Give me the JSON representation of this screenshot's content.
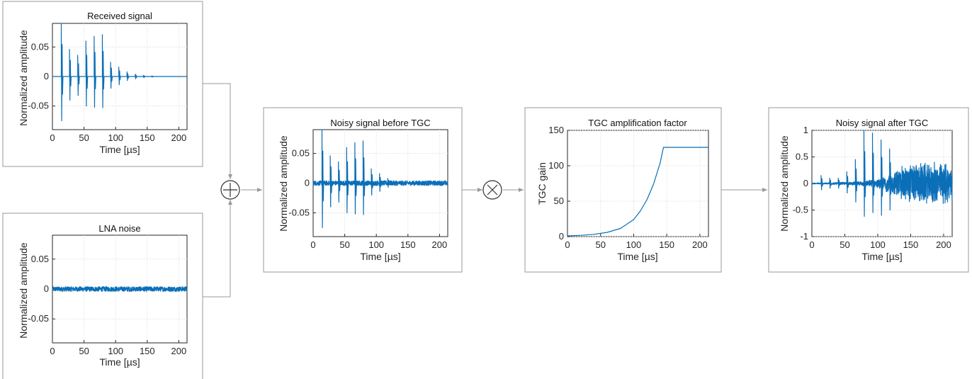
{
  "panels": [
    {
      "id": "received",
      "title": "Received signal",
      "xlabel": "Time [µs]",
      "ylabel": "Normalized amplitude",
      "xlim": [
        0,
        213
      ],
      "ylim": [
        -0.09,
        0.09
      ],
      "xticks": [
        0,
        50,
        100,
        150,
        200
      ],
      "yticks": [
        -0.05,
        0,
        0.05
      ],
      "xtick_labels": [
        "0",
        "50",
        "100",
        "150",
        "200"
      ],
      "ytick_labels": [
        "-0.05",
        "0",
        "0.05"
      ]
    },
    {
      "id": "lna_noise",
      "title": "LNA noise",
      "xlabel": "Time [µs]",
      "ylabel": "Normalized amplitude",
      "xlim": [
        0,
        213
      ],
      "ylim": [
        -0.09,
        0.09
      ],
      "xticks": [
        0,
        50,
        100,
        150,
        200
      ],
      "yticks": [
        -0.05,
        0,
        0.05
      ],
      "xtick_labels": [
        "0",
        "50",
        "100",
        "150",
        "200"
      ],
      "ytick_labels": [
        "-0.05",
        "0",
        "0.05"
      ]
    },
    {
      "id": "noisy_before",
      "title": "Noisy signal before TGC",
      "xlabel": "Time [µs]",
      "ylabel": "Normalized amplitude",
      "xlim": [
        0,
        213
      ],
      "ylim": [
        -0.09,
        0.09
      ],
      "xticks": [
        0,
        50,
        100,
        150,
        200
      ],
      "yticks": [
        -0.05,
        0,
        0.05
      ],
      "xtick_labels": [
        "0",
        "50",
        "100",
        "150",
        "200"
      ],
      "ytick_labels": [
        "-0.05",
        "0",
        "0.05"
      ]
    },
    {
      "id": "tgc_gain",
      "title": "TGC amplification factor",
      "xlabel": "Time [µs]",
      "ylabel": "TGC gain",
      "xlim": [
        0,
        213
      ],
      "ylim": [
        0,
        150
      ],
      "xticks": [
        0,
        50,
        100,
        150,
        200
      ],
      "yticks": [
        0,
        50,
        100,
        150
      ],
      "xtick_labels": [
        "0",
        "50",
        "100",
        "150",
        "200"
      ],
      "ytick_labels": [
        "0",
        "50",
        "100",
        "150"
      ]
    },
    {
      "id": "noisy_after",
      "title": "Noisy signal after TGC",
      "xlabel": "Time [µs]",
      "ylabel": "Normalized amplitude",
      "xlim": [
        0,
        213
      ],
      "ylim": [
        -1,
        1
      ],
      "xticks": [
        0,
        50,
        100,
        150,
        200
      ],
      "yticks": [
        -1,
        -0.5,
        0,
        0.5,
        1
      ],
      "xtick_labels": [
        "0",
        "50",
        "100",
        "150",
        "200"
      ],
      "ytick_labels": [
        "-1",
        "-0.5",
        "0",
        "0.5",
        "1"
      ]
    }
  ],
  "operators": {
    "sum": "sum-operator",
    "product": "product-operator"
  },
  "colors": {
    "trace": "#0b6fb8",
    "connector": "#9a9a9a"
  },
  "chart_data": [
    {
      "type": "line",
      "panel": "received",
      "title": "Received signal",
      "xlabel": "Time [µs]",
      "ylabel": "Normalized amplitude",
      "xlim": [
        0,
        213
      ],
      "ylim": [
        -0.09,
        0.09
      ],
      "grid": true,
      "echoes": [
        {
          "t": 14,
          "pos": 0.09,
          "neg": -0.075
        },
        {
          "t": 27,
          "pos": 0.046,
          "neg": -0.04
        },
        {
          "t": 40,
          "pos": 0.036,
          "neg": -0.032
        },
        {
          "t": 53,
          "pos": 0.06,
          "neg": -0.05
        },
        {
          "t": 66,
          "pos": 0.068,
          "neg": -0.052
        },
        {
          "t": 79,
          "pos": 0.071,
          "neg": -0.053
        },
        {
          "t": 92,
          "pos": 0.024,
          "neg": -0.02
        },
        {
          "t": 105,
          "pos": 0.016,
          "neg": -0.014
        },
        {
          "t": 118,
          "pos": 0.008,
          "neg": -0.007
        },
        {
          "t": 131,
          "pos": 0.004,
          "neg": -0.004
        },
        {
          "t": 144,
          "pos": 0.002,
          "neg": -0.002
        },
        {
          "t": 157,
          "pos": 0.001,
          "neg": -0.001
        }
      ]
    },
    {
      "type": "line",
      "panel": "lna_noise",
      "title": "LNA noise",
      "xlabel": "Time [µs]",
      "ylabel": "Normalized amplitude",
      "xlim": [
        0,
        213
      ],
      "ylim": [
        -0.09,
        0.09
      ],
      "grid": true,
      "noise_peak": 0.004
    },
    {
      "type": "line",
      "panel": "noisy_before",
      "title": "Noisy signal before TGC",
      "xlabel": "Time [µs]",
      "ylabel": "Normalized amplitude",
      "xlim": [
        0,
        213
      ],
      "ylim": [
        -0.09,
        0.09
      ],
      "grid": true,
      "noise_peak": 0.004
    },
    {
      "type": "line",
      "panel": "tgc_gain",
      "title": "TGC amplification factor",
      "xlabel": "Time [µs]",
      "ylabel": "TGC gain",
      "xlim": [
        0,
        213
      ],
      "ylim": [
        0,
        150
      ],
      "grid": true,
      "x": [
        0,
        20,
        40,
        60,
        80,
        100,
        110,
        120,
        130,
        140,
        145,
        160,
        180,
        200,
        213
      ],
      "y": [
        1,
        1.8,
        3.2,
        6,
        11.5,
        24,
        36,
        52,
        74,
        104,
        126,
        126,
        126,
        126,
        126
      ]
    },
    {
      "type": "line",
      "panel": "noisy_after",
      "title": "Noisy signal after TGC",
      "xlabel": "Time [µs]",
      "ylabel": "Normalized amplitude",
      "xlim": [
        0,
        213
      ],
      "ylim": [
        -1,
        1
      ],
      "grid": true,
      "echoes": [
        {
          "t": 14,
          "pos": 0.15,
          "neg": -0.12
        },
        {
          "t": 27,
          "pos": 0.1,
          "neg": -0.09
        },
        {
          "t": 40,
          "pos": 0.1,
          "neg": -0.09
        },
        {
          "t": 53,
          "pos": 0.22,
          "neg": -0.18
        },
        {
          "t": 66,
          "pos": 0.45,
          "neg": -0.35
        },
        {
          "t": 79,
          "pos": 1.0,
          "neg": -0.62
        },
        {
          "t": 92,
          "pos": 0.95,
          "neg": -0.55
        },
        {
          "t": 105,
          "pos": 0.82,
          "neg": -0.6
        },
        {
          "t": 118,
          "pos": 0.65,
          "neg": -0.5
        }
      ],
      "noise_envelope": [
        {
          "t": 0,
          "a": 0.01
        },
        {
          "t": 60,
          "a": 0.03
        },
        {
          "t": 100,
          "a": 0.08
        },
        {
          "t": 120,
          "a": 0.2
        },
        {
          "t": 145,
          "a": 0.42
        },
        {
          "t": 213,
          "a": 0.42
        }
      ]
    }
  ]
}
